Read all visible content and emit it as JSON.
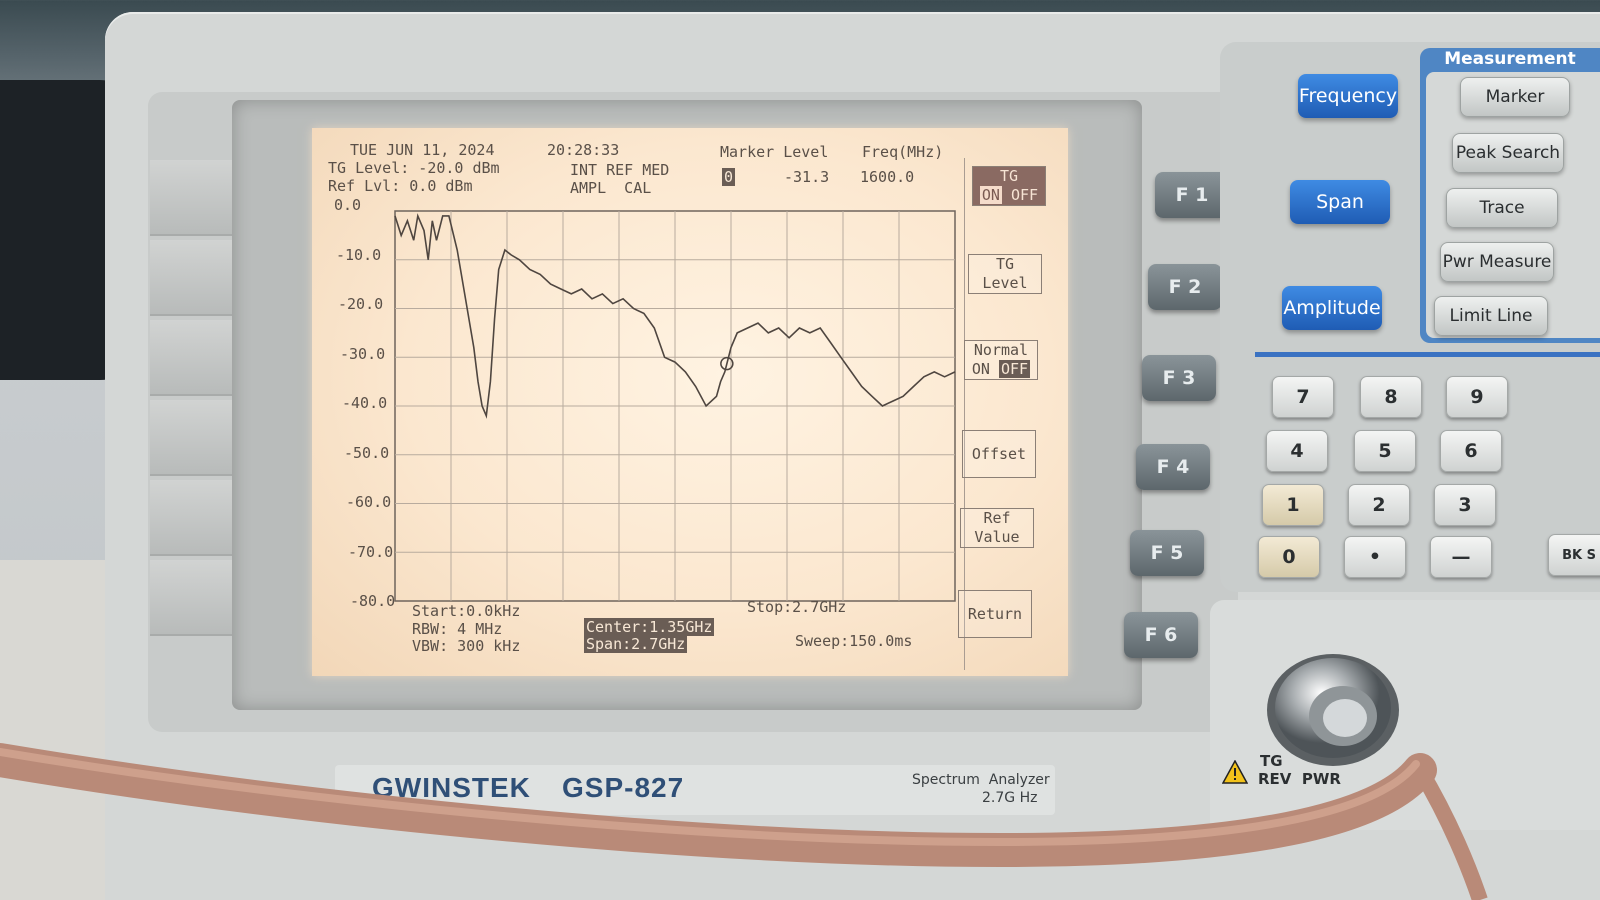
{
  "screen": {
    "header": {
      "date": "TUE JUN 11, 2024",
      "time": "20:28:33",
      "tg_level": "TG Level: -20.0 dBm",
      "ref_lvl": "Ref Lvl: 0.0 dBm",
      "int_ref": "INT REF MED",
      "ampl_cal": "AMPL  CAL",
      "marker_level_label": "Marker Level",
      "freq_label": "Freq(MHz)",
      "marker_index": "0",
      "marker_value": "-31.3",
      "marker_freq": "1600.0"
    },
    "y_ticks": [
      "0.0",
      "-10.0",
      "-20.0",
      "-30.0",
      "-40.0",
      "-50.0",
      "-60.0",
      "-70.0",
      "-80.0"
    ],
    "footer": {
      "start": "Start:0.0kHz",
      "stop": "Stop:2.7GHz",
      "rbw": "RBW: 4 MHz",
      "vbw": "VBW: 300 kHz",
      "center": "Center:1.35GHz",
      "span": "Span:2.7GHz",
      "sweep": "Sweep:150.0ms"
    },
    "softkeys": {
      "tg_onoff_l1": "TG",
      "tg_onoff_l2_on": "ON",
      "tg_onoff_l2_off": "OFF",
      "tg_level_l1": "TG",
      "tg_level_l2": "Level",
      "normal_l1": "Normal",
      "normal_on": "ON",
      "normal_off": "OFF",
      "offset": "Offset",
      "ref_value_l1": "Ref",
      "ref_value_l2": "Value",
      "return": "Return"
    }
  },
  "chart_data": {
    "type": "line",
    "xlabel": "",
    "ylabel": "",
    "xlim": [
      0,
      2700
    ],
    "ylim": [
      -80,
      0
    ],
    "grid": true,
    "series": [
      {
        "values_x_mhz": [
          0,
          30,
          60,
          90,
          110,
          140,
          160,
          180,
          200,
          230,
          260,
          300,
          340,
          380,
          400,
          420,
          440,
          460,
          480,
          500,
          530,
          560,
          600,
          650,
          700,
          750,
          800,
          850,
          900,
          950,
          1000,
          1050,
          1100,
          1150,
          1200,
          1250,
          1300,
          1350,
          1400,
          1450,
          1500,
          1550,
          1570,
          1590,
          1600,
          1620,
          1650,
          1700,
          1750,
          1800,
          1850,
          1900,
          1950,
          2000,
          2050,
          2100,
          2150,
          2200,
          2250,
          2300,
          2350,
          2400,
          2450,
          2500,
          2550,
          2600,
          2650,
          2700
        ],
        "values_dbm": [
          -1,
          -5,
          -2,
          -6,
          -1,
          -4,
          -10,
          -2,
          -6,
          -1,
          -1,
          -8,
          -18,
          -28,
          -35,
          -40,
          -42,
          -35,
          -22,
          -12,
          -8,
          -9,
          -10,
          -12,
          -13,
          -15,
          -16,
          -17,
          -16,
          -18,
          -17,
          -19,
          -18,
          -20,
          -21,
          -24,
          -30,
          -31,
          -33,
          -36,
          -40,
          -38,
          -35,
          -33,
          -31.3,
          -28,
          -25,
          -24,
          -23,
          -25,
          -24,
          -26,
          -24,
          -25,
          -24,
          -27,
          -30,
          -33,
          -36,
          -38,
          -40,
          -39,
          -38,
          -36,
          -34,
          -33,
          -34,
          -33
        ]
      }
    ]
  },
  "panel": {
    "fkeys": [
      "F 1",
      "F 2",
      "F 3",
      "F 4",
      "F 5",
      "F 6"
    ],
    "meas_title": "Measurement",
    "blue_buttons": [
      "Frequency",
      "Span",
      "Amplitude"
    ],
    "meas_buttons": [
      "Marker",
      "Peak Search",
      "Trace",
      "Pwr Measure",
      "Limit Line"
    ],
    "keypad": [
      "7",
      "8",
      "9",
      "4",
      "5",
      "6",
      "1",
      "2",
      "3",
      "0",
      "•",
      "—"
    ],
    "right_keys": [
      "BK S"
    ],
    "brand": "GWINSTEK",
    "model": "GSP-827",
    "product_l1": "Spectrum  Analyzer",
    "product_l2": "2.7G Hz",
    "port_label_1": "TG",
    "port_label_2": "REV  PWR"
  }
}
